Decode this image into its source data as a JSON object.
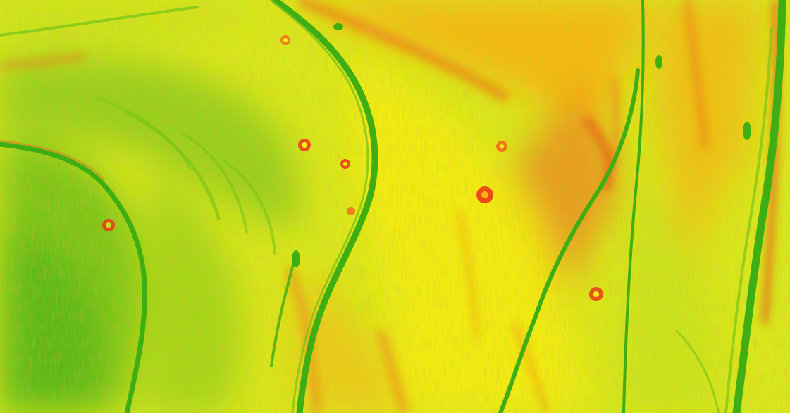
{
  "map": {
    "kind": "slope-shaded-terrain-raster",
    "legend_visible": false,
    "colors": {
      "base": "#d8e81a",
      "low": "#3fae12",
      "low_mid": "#7cc518",
      "mid": "#c6e21c",
      "high_mid": "#f4ec12",
      "high": "#f6b413",
      "very_high": "#f06a1a",
      "steep": "#ea3a16"
    },
    "icons": {
      "features": "sinkhole-marker-icon"
    }
  }
}
